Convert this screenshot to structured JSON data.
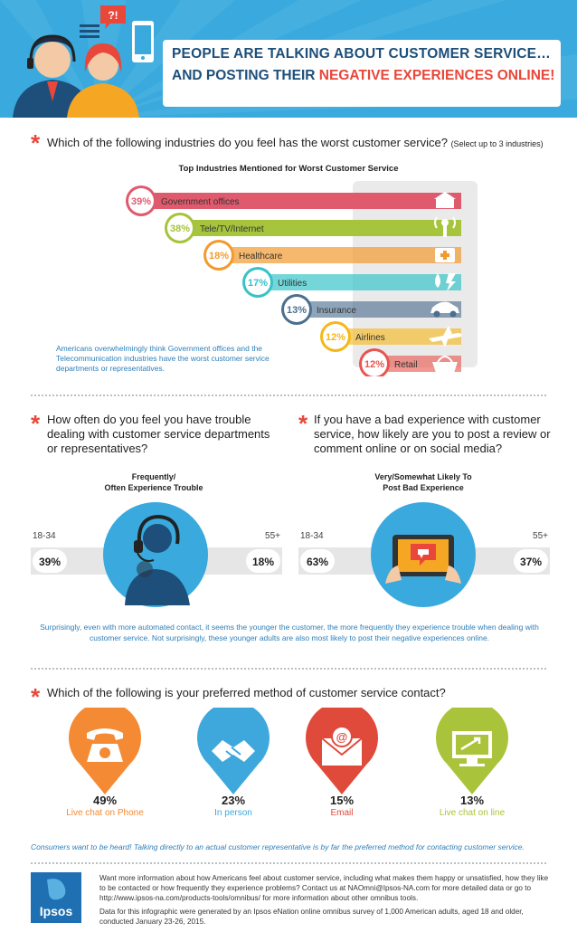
{
  "header": {
    "bubble_text": "?!",
    "title_line1": "PEOPLE ARE TALKING ABOUT CUSTOMER SERVICE…",
    "title_line2_prefix": "AND POSTING THEIR ",
    "title_line2_highlight": "NEGATIVE EXPERIENCES ONLINE!"
  },
  "section1": {
    "question": "Which of the following industries do you feel has the worst customer service?",
    "question_note": "(Select up to 3 industries)",
    "note": "Americans overwhelmingly think Government offices and the Telecommunication industries have the worst customer service departments or representatives."
  },
  "section2": {
    "q_left": "How often do you feel you have trouble dealing with customer service departments or representatives?",
    "q_right": "If you have a bad experience with customer service, how likely are you to post a review or comment online or on social media?",
    "left_sub_line1": "Frequently/",
    "left_sub_line2": "Often Experience Trouble",
    "right_sub_line1": "Very/Somewhat Likely To",
    "right_sub_line2": "Post Bad Experience",
    "note": "Surprisingly, even with more automated contact, it seems the younger the customer, the more frequently they experience trouble when dealing with customer service. Not surprisingly, these younger adults are also most likely to post their negative experiences online."
  },
  "section3": {
    "question": "Which of the following is your preferred method of customer service contact?",
    "note": "Consumers want to be heard! Talking directly to an actual customer representative is by far the preferred method for contacting customer service."
  },
  "footer": {
    "logo_text": "Ipsos",
    "text1": "Want more information about how Americans feel about customer service, including what makes them happy or unsatisfied, how they like to be contacted or how frequently they experience problems? Contact us at NAOmni@Ipsos-NA.com for more detailed data or go to http://www.ipsos-na.com/products-tools/omnibus/ for more information about other omnibus tools.",
    "text2": "Data for this infographic were generated by an Ipsos eNation online omnibus survey of 1,000 American adults, aged 18 and older, conducted January 23-26, 2015."
  },
  "colors": {
    "header_bg": "#3aa9dd",
    "accent_red": "#e8473a",
    "note_blue": "#2e7fb8",
    "government": "#e05a6e",
    "tele": "#a5c43a",
    "healthcare": "#f29a2e",
    "utilities": "#35c3c8",
    "insurance": "#4c6f8f",
    "airlines": "#f5b81a",
    "retail": "#e8554e",
    "phone": "#f58a34",
    "in_person": "#3ea8dc",
    "email": "#e04a3b",
    "online": "#a9c43a"
  },
  "chart_data": [
    {
      "type": "bar",
      "title": "Top Industries Mentioned for Worst Customer Service",
      "categories": [
        "Government offices",
        "Tele/TV/Internet",
        "Healthcare",
        "Utilities",
        "Insurance",
        "Airlines",
        "Retail"
      ],
      "values": [
        39,
        38,
        18,
        17,
        13,
        12,
        12
      ],
      "value_labels": [
        "39%",
        "38%",
        "18%",
        "17%",
        "13%",
        "12%",
        "12%"
      ],
      "icons": [
        "government-building-icon",
        "broadcast-tower-icon",
        "medical-kit-icon",
        "water-electricity-icon",
        "car-icon",
        "airplane-icon",
        "shopping-basket-icon"
      ]
    },
    {
      "type": "bar",
      "title": "Frequently/ Often Experience Trouble",
      "categories": [
        "18-34",
        "55+"
      ],
      "values": [
        39,
        18
      ],
      "value_labels": [
        "39%",
        "18%"
      ]
    },
    {
      "type": "bar",
      "title": "Very/Somewhat Likely To Post Bad Experience",
      "categories": [
        "18-34",
        "55+"
      ],
      "values": [
        63,
        37
      ],
      "value_labels": [
        "63%",
        "37%"
      ]
    },
    {
      "type": "bar",
      "categories": [
        "Live chat on Phone",
        "In person",
        "Email",
        "Live chat on line"
      ],
      "values": [
        49,
        23,
        15,
        13
      ],
      "value_labels": [
        "49%",
        "23%",
        "15%",
        "13%"
      ],
      "icons": [
        "telephone-icon",
        "handshake-icon",
        "email-icon",
        "computer-monitor-icon"
      ]
    }
  ]
}
